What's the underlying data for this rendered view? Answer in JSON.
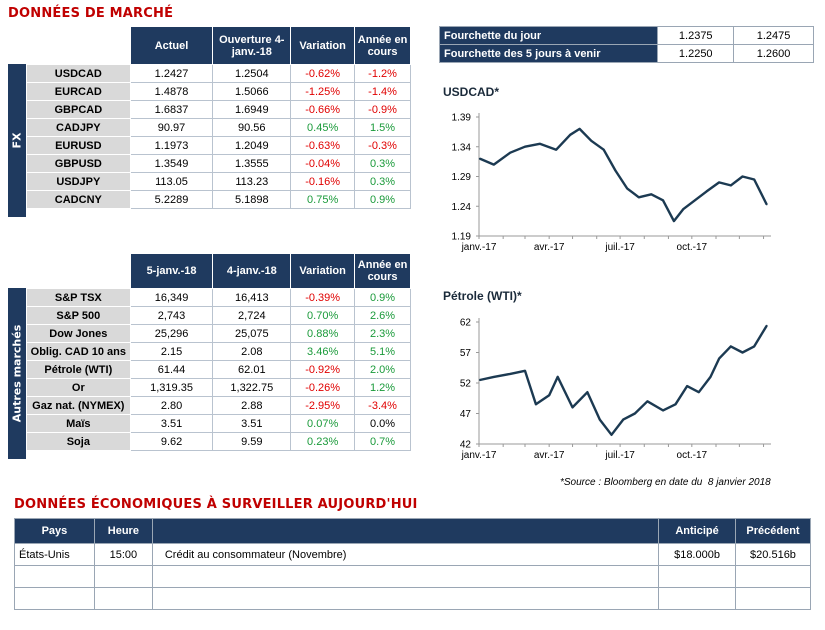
{
  "market_title": "DONNÉES DE MARCHÉ",
  "fx": {
    "side_label": "FX",
    "headers": [
      "Actuel",
      "Ouverture 4-janv.-18",
      "Variation",
      "Année en cours"
    ],
    "rows": [
      {
        "name": "USDCAD",
        "actuel": "1.2427",
        "ouv": "1.2504",
        "var": "-0.62%",
        "ytd": "-1.2%"
      },
      {
        "name": "EURCAD",
        "actuel": "1.4878",
        "ouv": "1.5066",
        "var": "-1.25%",
        "ytd": "-1.4%"
      },
      {
        "name": "GBPCAD",
        "actuel": "1.6837",
        "ouv": "1.6949",
        "var": "-0.66%",
        "ytd": "-0.9%"
      },
      {
        "name": "CADJPY",
        "actuel": "90.97",
        "ouv": "90.56",
        "var": "0.45%",
        "ytd": "1.5%"
      },
      {
        "name": "EURUSD",
        "actuel": "1.1973",
        "ouv": "1.2049",
        "var": "-0.63%",
        "ytd": "-0.3%"
      },
      {
        "name": "GBPUSD",
        "actuel": "1.3549",
        "ouv": "1.3555",
        "var": "-0.04%",
        "ytd": "0.3%"
      },
      {
        "name": "USDJPY",
        "actuel": "113.05",
        "ouv": "113.23",
        "var": "-0.16%",
        "ytd": "0.3%"
      },
      {
        "name": "CADCNY",
        "actuel": "5.2289",
        "ouv": "5.1898",
        "var": "0.75%",
        "ytd": "0.9%"
      }
    ]
  },
  "other": {
    "side_label": "Autres marchés",
    "headers": [
      "5-janv.-18",
      "4-janv.-18",
      "Variation",
      "Année en cours"
    ],
    "rows": [
      {
        "name": "S&P TSX",
        "actuel": "16,349",
        "ouv": "16,413",
        "var": "-0.39%",
        "ytd": "0.9%"
      },
      {
        "name": "S&P 500",
        "actuel": "2,743",
        "ouv": "2,724",
        "var": "0.70%",
        "ytd": "2.6%"
      },
      {
        "name": "Dow Jones",
        "actuel": "25,296",
        "ouv": "25,075",
        "var": "0.88%",
        "ytd": "2.3%"
      },
      {
        "name": "Oblig. CAD 10 ans",
        "actuel": "2.15",
        "ouv": "2.08",
        "var": "3.46%",
        "ytd": "5.1%"
      },
      {
        "name": "Pétrole (WTI)",
        "actuel": "61.44",
        "ouv": "62.01",
        "var": "-0.92%",
        "ytd": "2.0%"
      },
      {
        "name": "Or",
        "actuel": "1,319.35",
        "ouv": "1,322.75",
        "var": "-0.26%",
        "ytd": "1.2%"
      },
      {
        "name": "Gaz nat. (NYMEX)",
        "actuel": "2.80",
        "ouv": "2.88",
        "var": "-2.95%",
        "ytd": "-3.4%"
      },
      {
        "name": "Maïs",
        "actuel": "3.51",
        "ouv": "3.51",
        "var": "0.07%",
        "ytd": "0.0%"
      },
      {
        "name": "Soja",
        "actuel": "9.62",
        "ouv": "9.59",
        "var": "0.23%",
        "ytd": "0.7%"
      }
    ]
  },
  "range": {
    "rows": [
      {
        "label": "Fourchette du jour",
        "low": "1.2375",
        "high": "1.2475"
      },
      {
        "label": "Fourchette des 5 jours à venir",
        "low": "1.2250",
        "high": "1.2600"
      }
    ]
  },
  "source_note": "*Source : Bloomberg en date du  8 janvier 2018",
  "eco": {
    "title": "DONNÉES ÉCONOMIQUES À SURVEILLER AUJOURD'HUI",
    "headers": {
      "pays": "Pays",
      "heure": "Heure",
      "event": "",
      "anticipe": "Anticipé",
      "precedent": "Précédent"
    },
    "rows": [
      {
        "pays": "États-Unis",
        "heure": "15:00",
        "event": "Crédit au consommateur (Novembre)",
        "anticipe": "$18.000b",
        "precedent": "$20.516b"
      },
      {
        "pays": "",
        "heure": "",
        "event": "",
        "anticipe": "",
        "precedent": ""
      },
      {
        "pays": "",
        "heure": "",
        "event": "",
        "anticipe": "",
        "precedent": ""
      }
    ]
  },
  "colors": {
    "navy": "#1f3a5f",
    "line": "#1c3a52",
    "neg": "#e00000",
    "pos": "#1a9a3a",
    "title_red": "#c00000"
  },
  "chart_data": [
    {
      "type": "line",
      "title": "USDCAD*",
      "x_tick_labels": [
        "janv.-17",
        "avr.-17",
        "juil.-17",
        "oct.-17"
      ],
      "y_tick_labels": [
        "1.19",
        "1.24",
        "1.29",
        "1.34",
        "1.39"
      ],
      "ylim": [
        1.19,
        1.39
      ],
      "x": [
        "2017-01-02",
        "2017-01-20",
        "2017-02-10",
        "2017-03-01",
        "2017-03-20",
        "2017-04-10",
        "2017-04-28",
        "2017-05-10",
        "2017-05-25",
        "2017-06-10",
        "2017-06-25",
        "2017-07-10",
        "2017-07-25",
        "2017-08-10",
        "2017-08-25",
        "2017-09-08",
        "2017-09-20",
        "2017-10-05",
        "2017-10-20",
        "2017-11-05",
        "2017-11-20",
        "2017-12-05",
        "2017-12-20",
        "2018-01-05"
      ],
      "series": [
        {
          "values": [
            1.32,
            1.31,
            1.33,
            1.34,
            1.345,
            1.335,
            1.36,
            1.37,
            1.35,
            1.335,
            1.3,
            1.27,
            1.255,
            1.26,
            1.25,
            1.215,
            1.235,
            1.25,
            1.265,
            1.28,
            1.275,
            1.29,
            1.285,
            1.243
          ]
        }
      ],
      "grid": false,
      "legend": "none"
    },
    {
      "type": "line",
      "title": "Pétrole (WTI)*",
      "x_tick_labels": [
        "janv.-17",
        "avr.-17",
        "juil.-17",
        "oct.-17"
      ],
      "y_tick_labels": [
        "42",
        "47",
        "52",
        "57",
        "62"
      ],
      "ylim": [
        42,
        62
      ],
      "x": [
        "2017-01-02",
        "2017-01-20",
        "2017-02-10",
        "2017-03-01",
        "2017-03-15",
        "2017-04-01",
        "2017-04-12",
        "2017-05-01",
        "2017-05-20",
        "2017-06-05",
        "2017-06-20",
        "2017-07-05",
        "2017-07-20",
        "2017-08-05",
        "2017-08-25",
        "2017-09-10",
        "2017-09-25",
        "2017-10-10",
        "2017-10-25",
        "2017-11-05",
        "2017-11-20",
        "2017-12-05",
        "2017-12-20",
        "2018-01-05"
      ],
      "series": [
        {
          "values": [
            52.5,
            53,
            53.5,
            54,
            48.5,
            50,
            53,
            48,
            50.5,
            46,
            43.5,
            46,
            47,
            49,
            47.5,
            48.5,
            51.5,
            50.5,
            53,
            56,
            58,
            57,
            58,
            61.4
          ]
        }
      ],
      "grid": false,
      "legend": "none"
    }
  ]
}
